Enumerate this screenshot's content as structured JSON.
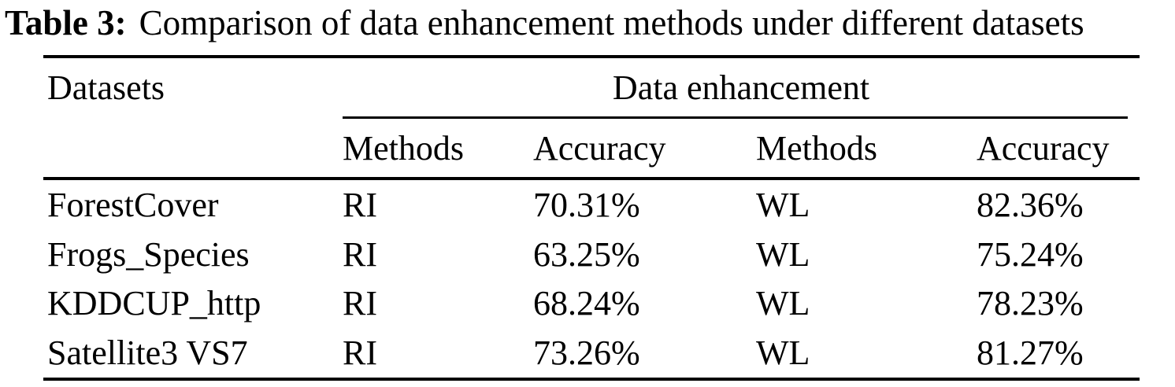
{
  "caption": {
    "label": "Table 3:",
    "text": "Comparison of data enhancement methods under different datasets"
  },
  "table": {
    "group_header": {
      "datasets": "Datasets",
      "data_enhancement": "Data enhancement"
    },
    "sub_headers": [
      "Methods",
      "Accuracy",
      "Methods",
      "Accuracy"
    ],
    "rows": [
      {
        "dataset": "ForestCover",
        "method1": "RI",
        "accuracy1": "70.31%",
        "method2": "WL",
        "accuracy2": "82.36%"
      },
      {
        "dataset": "Frogs_Species",
        "method1": "RI",
        "accuracy1": "63.25%",
        "method2": "WL",
        "accuracy2": "75.24%"
      },
      {
        "dataset": "KDDCUP_http",
        "method1": "RI",
        "accuracy1": "68.24%",
        "method2": "WL",
        "accuracy2": "78.23%"
      },
      {
        "dataset": "Satellite3 VS7",
        "method1": "RI",
        "accuracy1": "73.26%",
        "method2": "WL",
        "accuracy2": "81.27%"
      }
    ]
  },
  "colors": {
    "text": "#000000",
    "background": "#ffffff",
    "rule": "#000000"
  }
}
